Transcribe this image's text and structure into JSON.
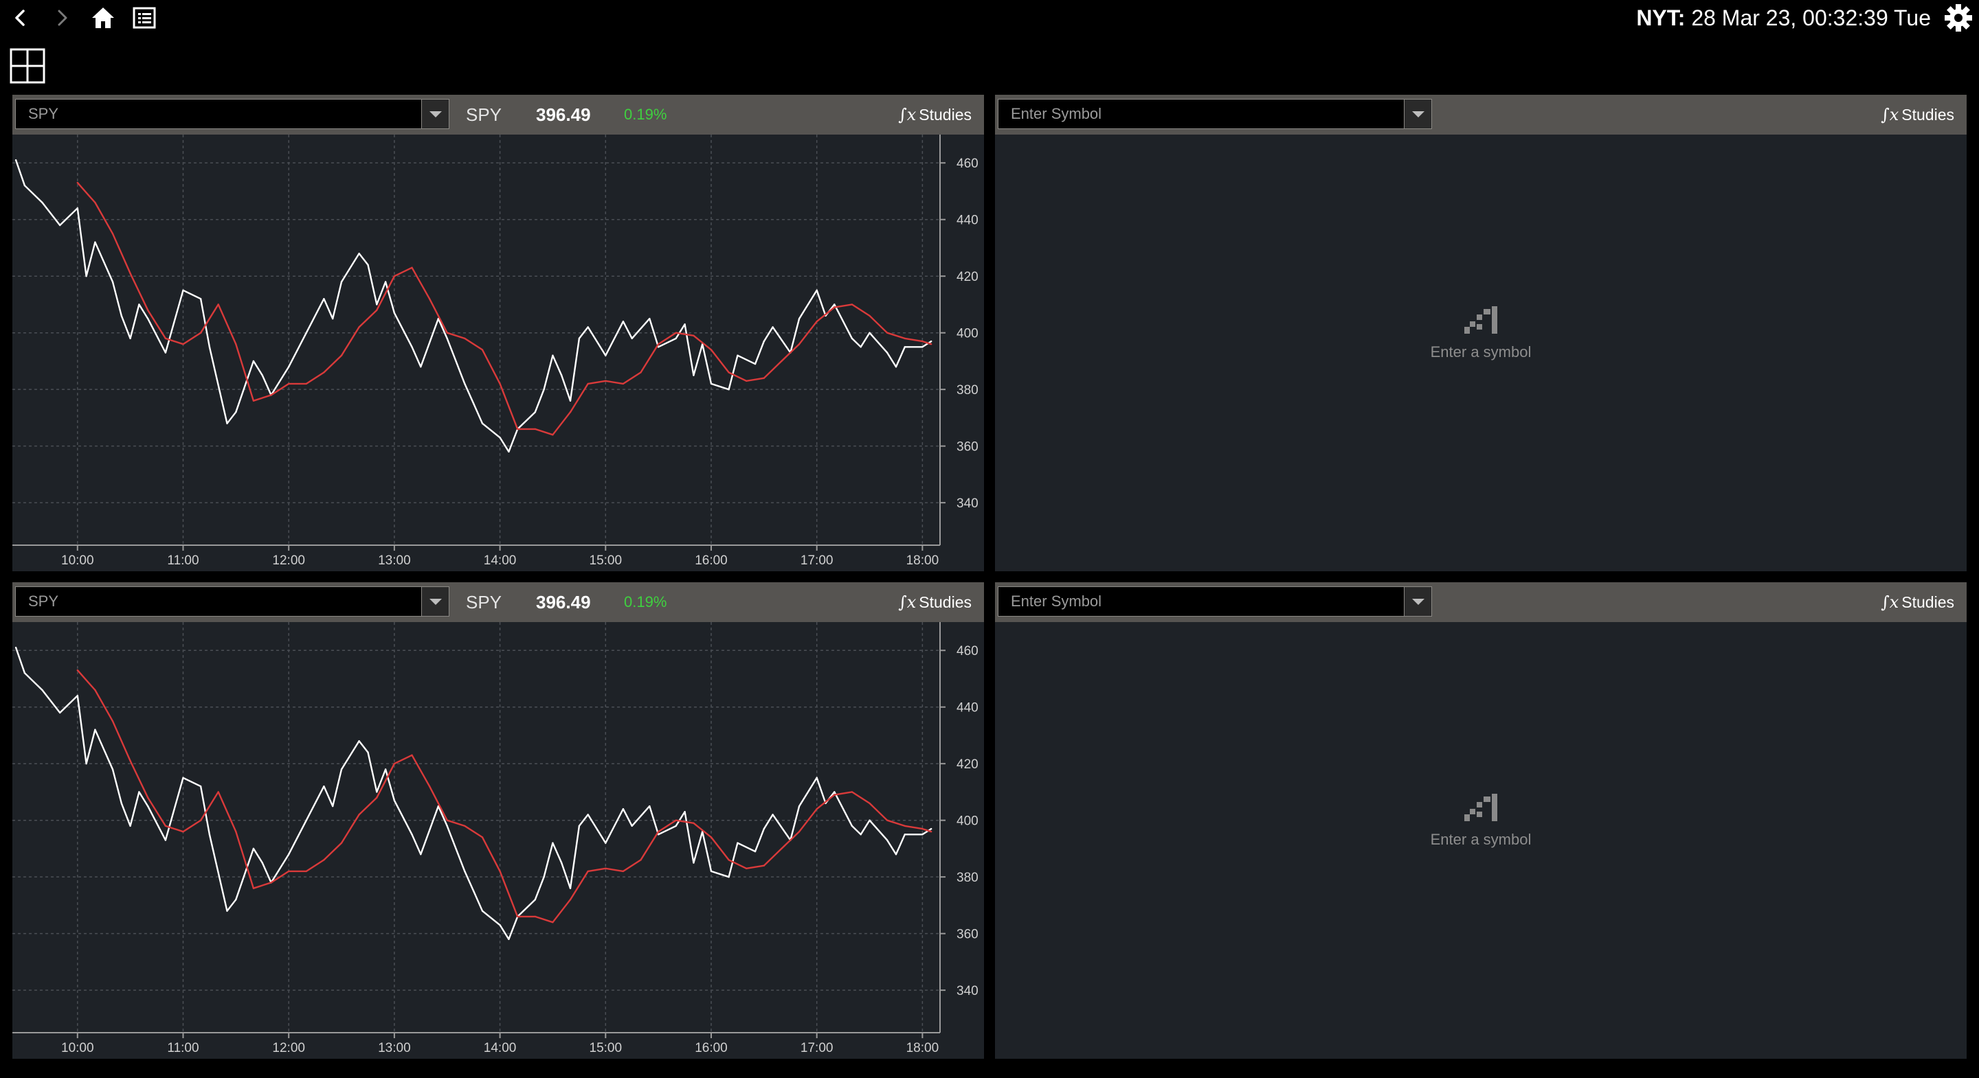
{
  "clock": {
    "tz": "NYT:",
    "datetime": "28 Mar 23, 00:32:39 Tue"
  },
  "icons": [
    "back-arrow-icon",
    "forward-arrow-icon",
    "home-icon",
    "list-icon",
    "gear-icon",
    "grid-layout-icon",
    "chart-bars-icon"
  ],
  "colors": {
    "price_line": "#ffffff",
    "avg_line": "#d93a3a",
    "change_positive": "#3fd13f",
    "panel_bg": "#1e2227",
    "header_bg": "#565451"
  },
  "panels": [
    {
      "symbol_input": "SPY",
      "quote_symbol": "SPY",
      "price": "396.49",
      "change": "0.19%",
      "studies_label": "Studies"
    },
    {
      "symbol_input": "Enter Symbol",
      "studies_label": "Studies",
      "empty_text": "Enter a symbol"
    },
    {
      "symbol_input": "SPY",
      "quote_symbol": "SPY",
      "price": "396.49",
      "change": "0.19%",
      "studies_label": "Studies"
    },
    {
      "symbol_input": "Enter Symbol",
      "studies_label": "Studies",
      "empty_text": "Enter a symbol"
    }
  ],
  "chart_data": [
    {
      "type": "line",
      "x_ticks": [
        "10:00",
        "11:00",
        "12:00",
        "13:00",
        "14:00",
        "15:00",
        "16:00",
        "17:00",
        "18:00"
      ],
      "y_ticks": [
        460,
        440,
        420,
        400,
        380,
        360,
        340
      ],
      "ylim": [
        325,
        470
      ],
      "grid": true,
      "series": [
        {
          "x": [
            "09:25",
            "09:30",
            "09:40",
            "09:50",
            "10:00",
            "10:05",
            "10:10",
            "10:20",
            "10:25",
            "10:30",
            "10:35",
            "10:40",
            "10:50",
            "11:00",
            "11:10",
            "11:15",
            "11:25",
            "11:30",
            "11:40",
            "11:45",
            "11:50",
            "12:00",
            "12:05",
            "12:10",
            "12:20",
            "12:25",
            "12:30",
            "12:40",
            "12:45",
            "12:50",
            "12:55",
            "13:00",
            "13:10",
            "13:15",
            "13:25",
            "13:30",
            "13:40",
            "13:45",
            "13:50",
            "14:00",
            "14:05",
            "14:10",
            "14:20",
            "14:25",
            "14:30",
            "14:35",
            "14:40",
            "14:45",
            "14:50",
            "15:00",
            "15:10",
            "15:15",
            "15:25",
            "15:30",
            "15:40",
            "15:45",
            "15:50",
            "15:55",
            "16:00",
            "16:10",
            "16:15",
            "16:25",
            "16:30",
            "16:35",
            "16:45",
            "16:50",
            "17:00",
            "17:05",
            "17:10",
            "17:20",
            "17:25",
            "17:30",
            "17:40",
            "17:45",
            "17:50",
            "18:00",
            "18:05"
          ],
          "values": [
            461,
            452,
            446,
            438,
            444,
            420,
            432,
            418,
            406,
            398,
            410,
            405,
            393,
            415,
            412,
            395,
            368,
            372,
            390,
            385,
            378,
            388,
            394,
            400,
            412,
            405,
            418,
            428,
            424,
            410,
            418,
            407,
            395,
            388,
            405,
            398,
            382,
            375,
            368,
            363,
            358,
            366,
            372,
            380,
            392,
            385,
            376,
            398,
            402,
            392,
            404,
            398,
            405,
            395,
            398,
            403,
            385,
            396,
            382,
            380,
            392,
            389,
            397,
            402,
            393,
            405,
            415,
            406,
            410,
            398,
            395,
            400,
            393,
            388,
            395,
            395,
            397
          ]
        },
        {
          "x": [
            "10:00",
            "10:10",
            "10:20",
            "10:30",
            "10:40",
            "10:50",
            "11:00",
            "11:10",
            "11:20",
            "11:30",
            "11:40",
            "11:50",
            "12:00",
            "12:10",
            "12:20",
            "12:30",
            "12:40",
            "12:50",
            "13:00",
            "13:10",
            "13:20",
            "13:30",
            "13:40",
            "13:50",
            "14:00",
            "14:10",
            "14:20",
            "14:30",
            "14:40",
            "14:50",
            "15:00",
            "15:10",
            "15:20",
            "15:30",
            "15:40",
            "15:50",
            "16:00",
            "16:10",
            "16:20",
            "16:30",
            "16:40",
            "16:50",
            "17:00",
            "17:10",
            "17:20",
            "17:30",
            "17:40",
            "17:50",
            "18:00",
            "18:05"
          ],
          "values": [
            453,
            446,
            435,
            421,
            408,
            398,
            396,
            400,
            410,
            396,
            376,
            378,
            382,
            382,
            386,
            392,
            402,
            408,
            420,
            423,
            412,
            400,
            398,
            394,
            382,
            366,
            366,
            364,
            372,
            382,
            383,
            382,
            386,
            396,
            400,
            399,
            394,
            386,
            383,
            384,
            390,
            396,
            404,
            409,
            410,
            406,
            400,
            398,
            397,
            396
          ]
        }
      ]
    },
    {
      "type": "line",
      "x_ticks": [
        "10:00",
        "11:00",
        "12:00",
        "13:00",
        "14:00",
        "15:00",
        "16:00",
        "17:00",
        "18:00"
      ],
      "y_ticks": [
        460,
        440,
        420,
        400,
        380,
        360,
        340
      ],
      "ylim": [
        325,
        470
      ],
      "grid": true,
      "series": [
        {
          "x": [
            "09:25",
            "09:30",
            "09:40",
            "09:50",
            "10:00",
            "10:05",
            "10:10",
            "10:20",
            "10:25",
            "10:30",
            "10:35",
            "10:40",
            "10:50",
            "11:00",
            "11:10",
            "11:15",
            "11:25",
            "11:30",
            "11:40",
            "11:45",
            "11:50",
            "12:00",
            "12:05",
            "12:10",
            "12:20",
            "12:25",
            "12:30",
            "12:40",
            "12:45",
            "12:50",
            "12:55",
            "13:00",
            "13:10",
            "13:15",
            "13:25",
            "13:30",
            "13:40",
            "13:45",
            "13:50",
            "14:00",
            "14:05",
            "14:10",
            "14:20",
            "14:25",
            "14:30",
            "14:35",
            "14:40",
            "14:45",
            "14:50",
            "15:00",
            "15:10",
            "15:15",
            "15:25",
            "15:30",
            "15:40",
            "15:45",
            "15:50",
            "15:55",
            "16:00",
            "16:10",
            "16:15",
            "16:25",
            "16:30",
            "16:35",
            "16:45",
            "16:50",
            "17:00",
            "17:05",
            "17:10",
            "17:20",
            "17:25",
            "17:30",
            "17:40",
            "17:45",
            "17:50",
            "18:00",
            "18:05"
          ],
          "values": [
            461,
            452,
            446,
            438,
            444,
            420,
            432,
            418,
            406,
            398,
            410,
            405,
            393,
            415,
            412,
            395,
            368,
            372,
            390,
            385,
            378,
            388,
            394,
            400,
            412,
            405,
            418,
            428,
            424,
            410,
            418,
            407,
            395,
            388,
            405,
            398,
            382,
            375,
            368,
            363,
            358,
            366,
            372,
            380,
            392,
            385,
            376,
            398,
            402,
            392,
            404,
            398,
            405,
            395,
            398,
            403,
            385,
            396,
            382,
            380,
            392,
            389,
            397,
            402,
            393,
            405,
            415,
            406,
            410,
            398,
            395,
            400,
            393,
            388,
            395,
            395,
            397
          ]
        },
        {
          "x": [
            "10:00",
            "10:10",
            "10:20",
            "10:30",
            "10:40",
            "10:50",
            "11:00",
            "11:10",
            "11:20",
            "11:30",
            "11:40",
            "11:50",
            "12:00",
            "12:10",
            "12:20",
            "12:30",
            "12:40",
            "12:50",
            "13:00",
            "13:10",
            "13:20",
            "13:30",
            "13:40",
            "13:50",
            "14:00",
            "14:10",
            "14:20",
            "14:30",
            "14:40",
            "14:50",
            "15:00",
            "15:10",
            "15:20",
            "15:30",
            "15:40",
            "15:50",
            "16:00",
            "16:10",
            "16:20",
            "16:30",
            "16:40",
            "16:50",
            "17:00",
            "17:10",
            "17:20",
            "17:30",
            "17:40",
            "17:50",
            "18:00",
            "18:05"
          ],
          "values": [
            453,
            446,
            435,
            421,
            408,
            398,
            396,
            400,
            410,
            396,
            376,
            378,
            382,
            382,
            386,
            392,
            402,
            408,
            420,
            423,
            412,
            400,
            398,
            394,
            382,
            366,
            366,
            364,
            372,
            382,
            383,
            382,
            386,
            396,
            400,
            399,
            394,
            386,
            383,
            384,
            390,
            396,
            404,
            409,
            410,
            406,
            400,
            398,
            397,
            396
          ]
        }
      ]
    }
  ]
}
